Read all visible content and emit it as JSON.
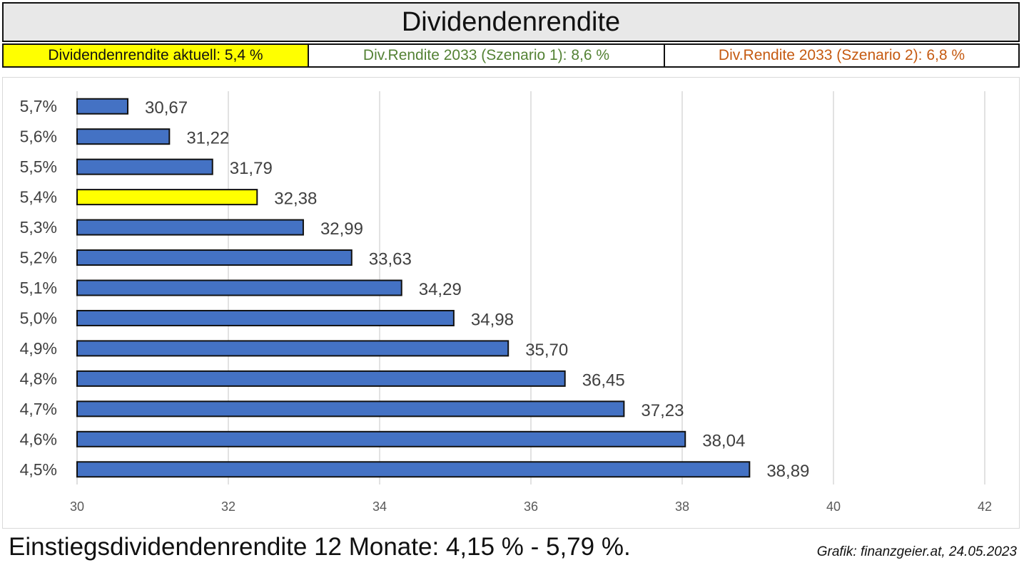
{
  "header": {
    "title": "Dividendenrendite",
    "current": "Dividendenrendite aktuell: 5,4 %",
    "scenario1": "Div.Rendite 2033 (Szenario 1): 8,6 %",
    "scenario2": "Div.Rendite 2033 (Szenario 2): 6,8 %"
  },
  "footer": {
    "summary": "Einstiegsdividendenrendite 12 Monate: 4,15 % - 5,79 %.",
    "source": "Grafik: finanzgeier.at, 24.05.2023"
  },
  "colors": {
    "bar": "#4472c4",
    "highlight": "#ffff00",
    "scenario1": "#548235",
    "scenario2": "#c55a11"
  },
  "chart_data": {
    "type": "bar",
    "orientation": "horizontal",
    "categories": [
      "5,7%",
      "5,6%",
      "5,5%",
      "5,4%",
      "5,3%",
      "5,2%",
      "5,1%",
      "5,0%",
      "4,9%",
      "4,8%",
      "4,7%",
      "4,6%",
      "4,5%"
    ],
    "values": [
      30.67,
      31.22,
      31.79,
      32.38,
      32.99,
      33.63,
      34.29,
      34.98,
      35.7,
      36.45,
      37.23,
      38.04,
      38.89
    ],
    "value_labels": [
      "30,67",
      "31,22",
      "31,79",
      "32,38",
      "32,99",
      "33,63",
      "34,29",
      "34,98",
      "35,70",
      "36,45",
      "37,23",
      "38,04",
      "38,89"
    ],
    "highlight_category": "5,4%",
    "xlim": [
      30,
      42
    ],
    "xticks": [
      30,
      32,
      34,
      36,
      38,
      40,
      42
    ],
    "grid": true,
    "legend": "none"
  }
}
